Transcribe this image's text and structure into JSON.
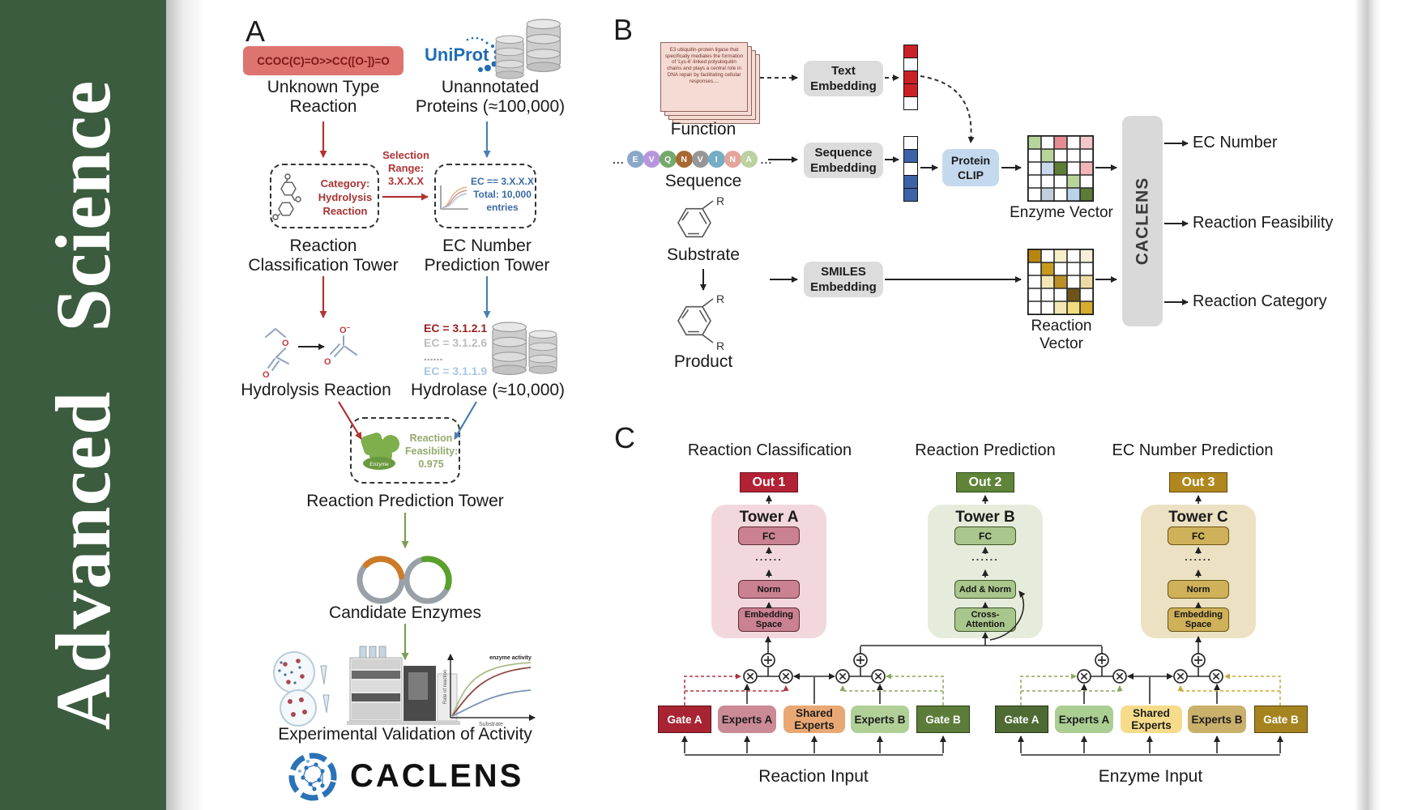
{
  "sidebar": {
    "title": "Advanced Science"
  },
  "colors": {
    "sidebar_green": "#3b5c3e",
    "smiles_box": "#dd7470",
    "embed_box": "#dcdcdc",
    "clip_box": "#c5d9ee",
    "caclens_box": "#d9d9d9",
    "out1": "#b22234",
    "out2": "#5f8438",
    "out3": "#b0871f",
    "tower_a_bg": "#f2d8dc",
    "tower_a_box": "#ca8191",
    "tower_b_bg": "#e5ecdb",
    "tower_b_box": "#a9c68c",
    "tower_c_bg": "#ece1c2",
    "tower_c_box": "#cfb15a",
    "rx_gate_a": "#a82433",
    "rx_experts_a": "#ca8a96",
    "rx_shared": "#e9a873",
    "rx_experts_b": "#b0d098",
    "rx_gate_b": "#5c7c3a",
    "ez_gate_a": "#4d6b33",
    "ez_experts_a": "#abce93",
    "ez_shared": "#f6dc8a",
    "ez_experts_b": "#c9b06b",
    "ez_gate_b": "#a5841f"
  },
  "panel_a": {
    "label": "A",
    "smiles": "CCOC(C)=O>>CC([O-])=O",
    "unknown_type": "Unknown Type\nReaction",
    "uniprot": "UniProt",
    "unannotated": "Unannotated\nProteins (≈100,000)",
    "selection_range": "Selection\nRange:\n3.X.X.X",
    "category": "Category:\nHydrolysis\nReaction",
    "ec_filter": "EC == 3.X.X.X\nTotal: 10,000\nentries",
    "classification_tower": "Reaction\nClassification Tower",
    "ec_tower": "EC Number\nPrediction Tower",
    "hydrolysis_reaction": "Hydrolysis Reaction",
    "hydrolase": "Hydrolase (≈10,000)",
    "ec_list": [
      {
        "text": "EC = 3.1.2.1",
        "color": "#9c1f1f"
      },
      {
        "text": "EC = 3.1.2.6",
        "color": "#bcbcbc"
      },
      {
        "text": "......",
        "color": "#9a9a9a"
      },
      {
        "text": "EC = 3.1.1.9",
        "color": "#a9c6e4"
      }
    ],
    "enzyme_label": "Enzyme",
    "feasibility": "Reaction\nFeasibility:\n0.975",
    "reaction_prediction_tower": "Reaction Prediction Tower",
    "candidate_enzymes": "Candidate Enzymes",
    "activity_plot": {
      "ylabel": "Rate of reaction",
      "xlabel": "Substrate",
      "annotation": "enzyme activity"
    },
    "validation": "Experimental Validation of Activity",
    "brand": "CACLENS"
  },
  "panel_b": {
    "label": "B",
    "function_text": "E3 ubiquitin-protein ligase that specifically mediates the formation of 'Lys-6'-linked polyubiquitin chains and plays a central role in DNA repair by facilitating cellular responses....",
    "function_label": "Function",
    "sequence": {
      "letters": [
        "E",
        "V",
        "Q",
        "N",
        "V",
        "I",
        "N",
        "A"
      ],
      "colors": [
        "#8ba7c7",
        "#b795dd",
        "#74a96b",
        "#a96831",
        "#969696",
        "#74aec4",
        "#e4a49c",
        "#bad1a0"
      ],
      "ellipsis": "..."
    },
    "sequence_label": "Sequence",
    "substrate_label": "Substrate",
    "product_label": "Product",
    "r_group": "R",
    "text_embedding": "Text\nEmbedding",
    "sequence_embedding": "Sequence\nEmbedding",
    "smiles_embedding": "SMILES\nEmbedding",
    "protein_clip": "Protein\nCLIP",
    "text_vector": [
      "#cb2127",
      "#ffffff",
      "#cb2127",
      "#cb2127",
      "#ffffff"
    ],
    "sequence_vector": [
      "#ffffff",
      "#3c63a8",
      "#ffffff",
      "#3c63a8",
      "#3c63a8"
    ],
    "enzyme_vector_label": "Enzyme Vector",
    "reaction_vector_label": "Reaction Vector",
    "enzyme_grid": [
      [
        "#b7d49c",
        "#ffffff",
        "#e58d92",
        "#ffffff",
        "#f3c6ca"
      ],
      [
        "#ffffff",
        "#b7d49c",
        "#ffffff",
        "#ffffff",
        "#ffffff"
      ],
      [
        "#ffffff",
        "#c9d9ec",
        "#5d7c35",
        "#ffffff",
        "#f0b6ba"
      ],
      [
        "#ffffff",
        "#ffffff",
        "#ffffff",
        "#b7d49c",
        "#ffffff"
      ],
      [
        "#ffffff",
        "#c2cedb",
        "#ffffff",
        "#b9d2ea",
        "#5d7c35"
      ]
    ],
    "reaction_grid": [
      [
        "#b8860e",
        "#ffffff",
        "#f6eec9",
        "#ffffff",
        "#f7f0d8"
      ],
      [
        "#ffffff",
        "#c79a1e",
        "#ffffff",
        "#ffffff",
        "#ffffff"
      ],
      [
        "#ffffff",
        "#f4e7b5",
        "#bb9025",
        "#ffffff",
        "#eedaa4"
      ],
      [
        "#ffffff",
        "#ffffff",
        "#ffffff",
        "#6d551a",
        "#ffffff"
      ],
      [
        "#ffffff",
        "#ffffff",
        "#f4e7b5",
        "#f2dc7e",
        "#d4ad2e"
      ]
    ],
    "caclens": "CACLENS",
    "outputs": [
      "EC Number",
      "Reaction Feasibility",
      "Reaction Category"
    ]
  },
  "panel_c": {
    "label": "C",
    "headings": [
      "Reaction Classification",
      "Reaction Prediction",
      "EC Number Prediction"
    ],
    "outs": [
      "Out 1",
      "Out 2",
      "Out 3"
    ],
    "towers": [
      {
        "name": "Tower A",
        "fc": "FC",
        "dots": "......",
        "mid": "Norm",
        "bottom": "Embedding\nSpace"
      },
      {
        "name": "Tower B",
        "fc": "FC",
        "dots": "......",
        "mid": "Add & Norm",
        "bottom": "Cross-\nAttention"
      },
      {
        "name": "Tower C",
        "fc": "FC",
        "dots": "......",
        "mid": "Norm",
        "bottom": "Embedding\nSpace"
      }
    ],
    "reaction_group": {
      "gate_a": "Gate A",
      "experts_a": "Experts A",
      "shared": "Shared\nExperts",
      "experts_b": "Experts B",
      "gate_b": "Gate B",
      "input_label": "Reaction Input"
    },
    "enzyme_group": {
      "gate_a": "Gate A",
      "experts_a": "Experts A",
      "shared": "Shared\nEx perts",
      "experts_b": "Experts B",
      "gate_b": "Gate B",
      "input_label": "Enzyme Input"
    }
  }
}
